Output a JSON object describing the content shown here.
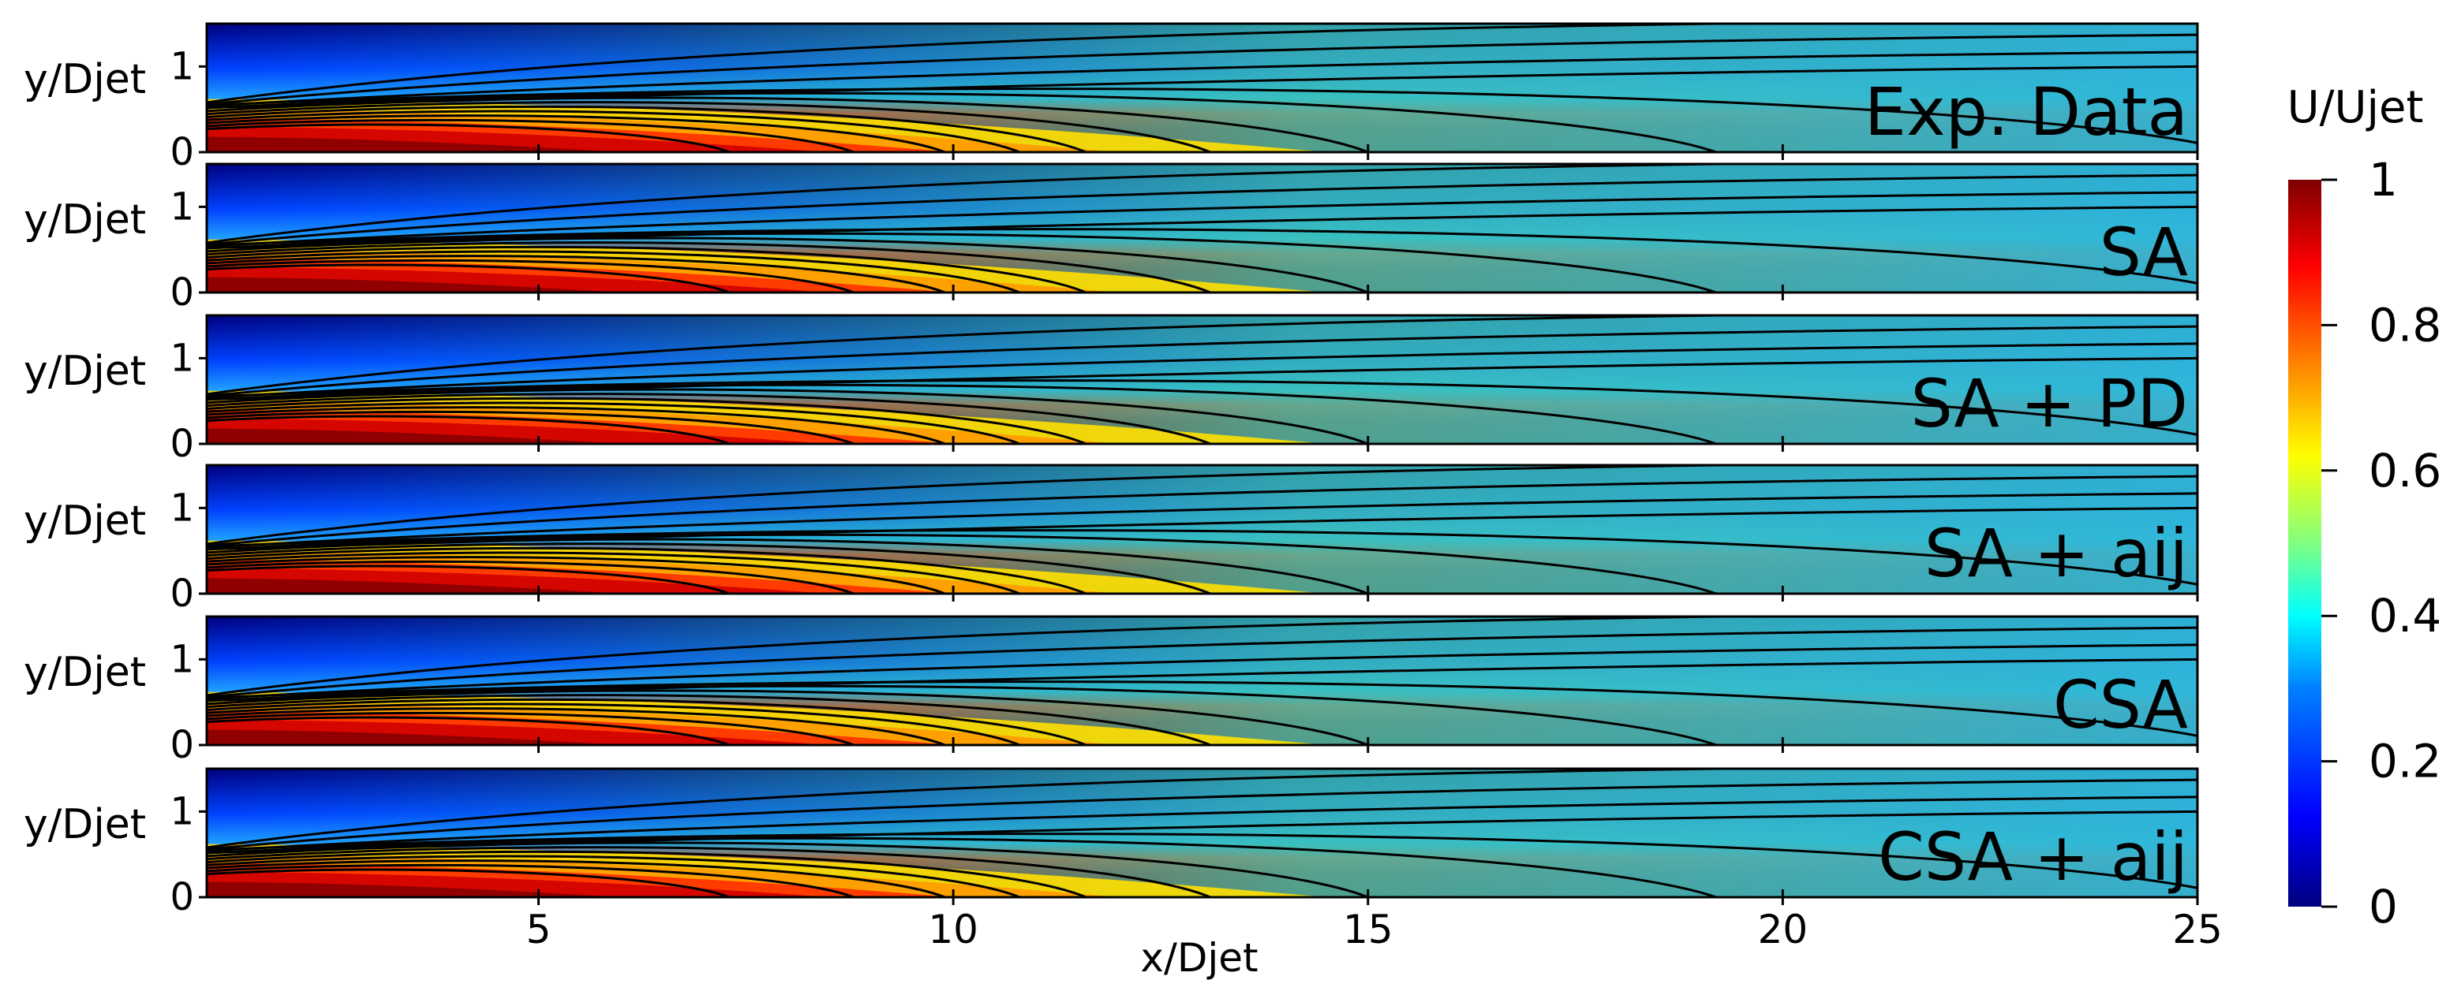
{
  "chart_data": {
    "type": "heatmap",
    "panels": [
      {
        "label": "Exp. Data"
      },
      {
        "label": "SA"
      },
      {
        "label": "SA + PD"
      },
      {
        "label": "SA + aij"
      },
      {
        "label": "CSA"
      },
      {
        "label": "CSA + aij"
      }
    ],
    "xlabel": "x/Djet",
    "ylabel": "y/Djet",
    "xlim": [
      1,
      25
    ],
    "ylim": [
      0,
      1.5
    ],
    "x_ticks": [
      5,
      10,
      15,
      20,
      25
    ],
    "y_ticks": [
      0,
      1
    ],
    "colorbar": {
      "title": "U/Ujet",
      "range": [
        0,
        1
      ],
      "ticks": [
        "0",
        "0.2",
        "0.4",
        "0.6",
        "0.8",
        "1"
      ],
      "tick_values": [
        0,
        0.2,
        0.4,
        0.6,
        0.8,
        1
      ],
      "colormap": [
        "#00007f",
        "#0000ff",
        "#007fff",
        "#00ffff",
        "#7fff7f",
        "#ffff00",
        "#ff7f00",
        "#ff0000",
        "#7f0000"
      ]
    },
    "contour_levels": [
      0.1,
      0.2,
      0.3,
      0.4,
      0.5,
      0.6,
      0.7,
      0.8,
      0.9,
      0.95
    ]
  }
}
